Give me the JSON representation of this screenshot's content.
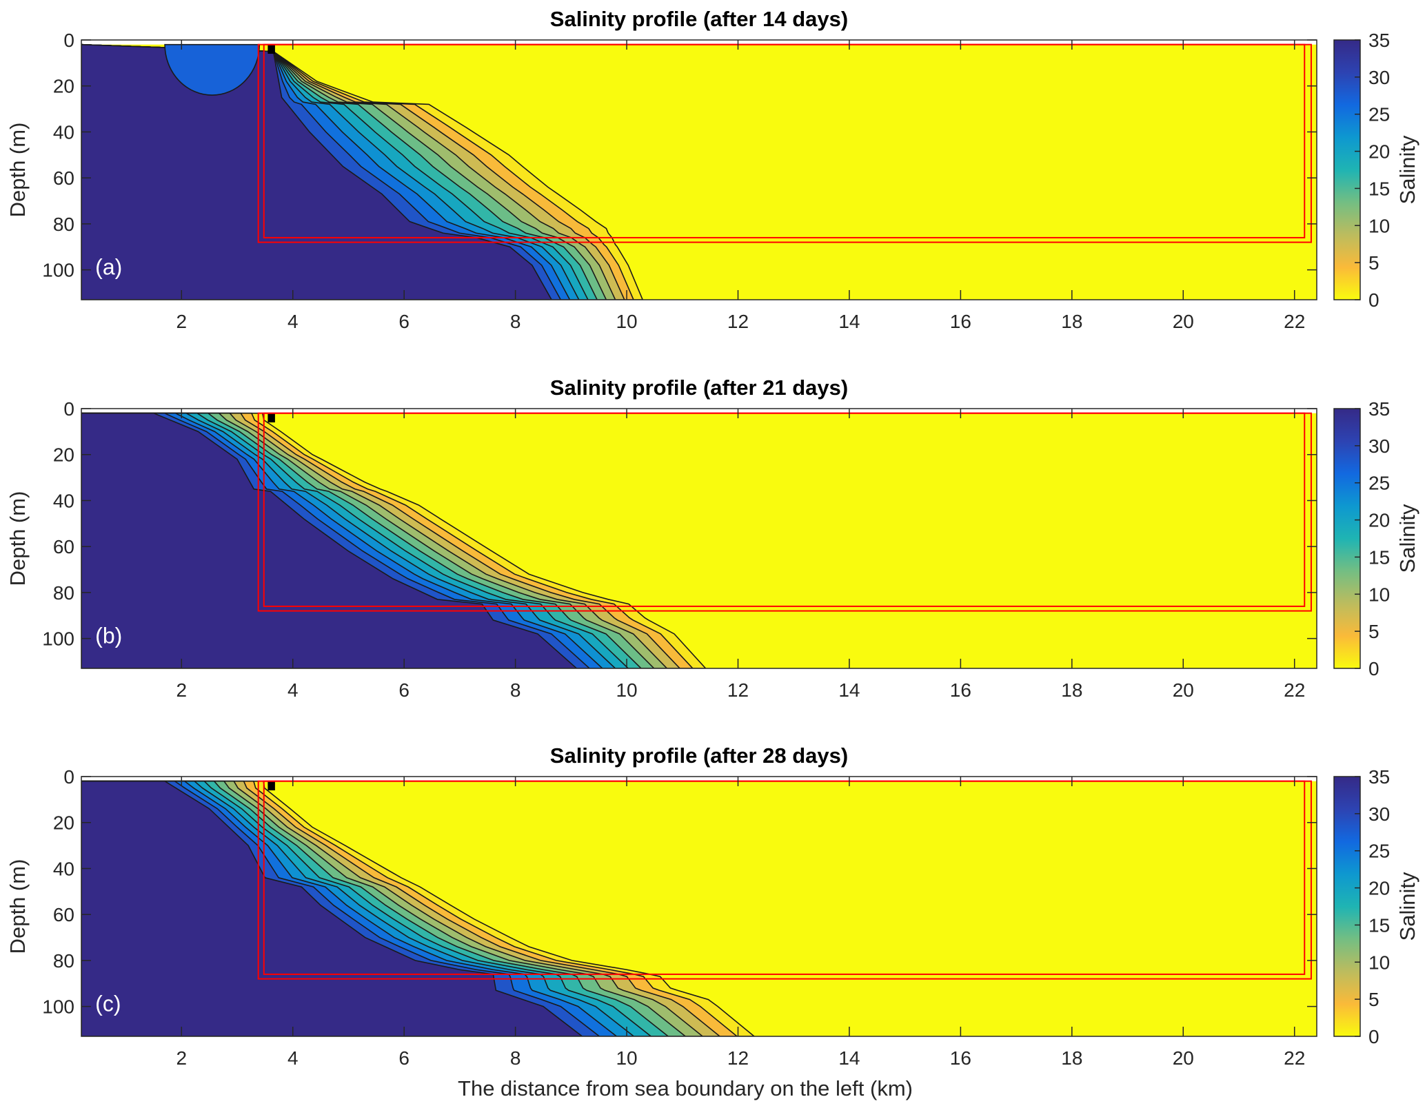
{
  "figure": {
    "xlabel": "The distance from sea boundary on the left (km)",
    "ylabel": "Depth (m)",
    "colorbar_label": "Salinity"
  },
  "colors": {
    "sea_water": "#352A87",
    "fresh_water": "#F9FB0E",
    "overlay_box": "#FF0000",
    "parula_stops": [
      "#F9FB0E",
      "#FABA39",
      "#BCBC5E",
      "#73BE83",
      "#1FB4B3",
      "#0E98D0",
      "#1269E0",
      "#2D43B2",
      "#352A87"
    ]
  },
  "chart_data": [
    {
      "type": "heatmap",
      "panel_label": "(a)",
      "title": "Salinity profile (after 14 days)",
      "xlabel": "",
      "ylabel": "Depth (m)",
      "xlim": [
        0.2,
        22.4
      ],
      "ylim": [
        0,
        113
      ],
      "xticks": [
        2,
        4,
        6,
        8,
        10,
        12,
        14,
        16,
        18,
        20,
        22
      ],
      "yticks": [
        0,
        20,
        40,
        60,
        80,
        100
      ],
      "colorbar": {
        "label": "Salinity",
        "range": [
          0,
          35
        ],
        "ticks": [
          0,
          5,
          10,
          15,
          20,
          25,
          30,
          35
        ]
      },
      "contour_levels": [
        3,
        6,
        9,
        12,
        15,
        18,
        21,
        24,
        27,
        30
      ],
      "surface_lens": {
        "x_start": 1.7,
        "x_end": 3.4,
        "bottom_depth": 24,
        "salinity": 27
      },
      "boundaries": {
        "fresh_edge": [
          [
            3.65,
            5
          ],
          [
            4.5,
            18
          ],
          [
            5.6,
            27
          ],
          [
            6.7,
            28
          ],
          [
            7.4,
            38
          ],
          [
            8.2,
            50
          ],
          [
            8.9,
            64
          ],
          [
            9.5,
            74
          ],
          [
            9.95,
            82
          ],
          [
            10.0,
            89
          ],
          [
            10.2,
            98
          ],
          [
            10.45,
            113
          ]
        ],
        "sea_edge": [
          [
            3.65,
            5
          ],
          [
            3.8,
            25
          ],
          [
            4.3,
            40
          ],
          [
            4.9,
            55
          ],
          [
            5.6,
            67
          ],
          [
            6.1,
            79
          ],
          [
            6.7,
            84
          ],
          [
            7.3,
            86
          ],
          [
            7.9,
            90
          ],
          [
            8.3,
            98
          ],
          [
            8.65,
            113
          ]
        ]
      },
      "overlay_boxes": [
        {
          "x": [
            3.38,
            22.3
          ],
          "depth": [
            2,
            88
          ]
        },
        {
          "x": [
            3.48,
            22.18
          ],
          "depth": [
            2,
            86
          ]
        }
      ]
    },
    {
      "type": "heatmap",
      "panel_label": "(b)",
      "title": "Salinity profile (after 21 days)",
      "xlabel": "",
      "ylabel": "Depth (m)",
      "xlim": [
        0.2,
        22.4
      ],
      "ylim": [
        0,
        113
      ],
      "xticks": [
        2,
        4,
        6,
        8,
        10,
        12,
        14,
        16,
        18,
        20,
        22
      ],
      "yticks": [
        0,
        20,
        40,
        60,
        80,
        100
      ],
      "colorbar": {
        "label": "Salinity",
        "range": [
          0,
          35
        ],
        "ticks": [
          0,
          5,
          10,
          15,
          20,
          25,
          30,
          35
        ]
      },
      "contour_levels": [
        3,
        6,
        9,
        12,
        15,
        18,
        21,
        24,
        27,
        30
      ],
      "surface_lens": null,
      "boundaries": {
        "fresh_edge": [
          [
            3.65,
            5
          ],
          [
            4.5,
            20
          ],
          [
            5.5,
            32
          ],
          [
            6.5,
            42
          ],
          [
            7.5,
            57
          ],
          [
            8.5,
            72
          ],
          [
            9.5,
            80
          ],
          [
            10.3,
            85
          ],
          [
            10.6,
            91
          ],
          [
            11.1,
            98
          ],
          [
            11.65,
            113
          ]
        ],
        "sea_edge": [
          [
            1.5,
            2
          ],
          [
            2.3,
            10
          ],
          [
            3.0,
            22
          ],
          [
            3.3,
            35
          ],
          [
            3.6,
            36
          ],
          [
            4.2,
            48
          ],
          [
            5.0,
            62
          ],
          [
            5.8,
            74
          ],
          [
            6.6,
            83
          ],
          [
            7.4,
            85
          ],
          [
            7.6,
            92
          ],
          [
            8.4,
            98
          ],
          [
            9.1,
            113
          ]
        ]
      },
      "overlay_boxes": [
        {
          "x": [
            3.38,
            22.3
          ],
          "depth": [
            2,
            88
          ]
        },
        {
          "x": [
            3.48,
            22.18
          ],
          "depth": [
            2,
            86
          ]
        }
      ]
    },
    {
      "type": "heatmap",
      "panel_label": "(c)",
      "title": "Salinity profile (after 28 days)",
      "xlabel": "The distance from sea boundary on the left (km)",
      "ylabel": "Depth (m)",
      "xlim": [
        0.2,
        22.4
      ],
      "ylim": [
        0,
        113
      ],
      "xticks": [
        2,
        4,
        6,
        8,
        10,
        12,
        14,
        16,
        18,
        20,
        22
      ],
      "yticks": [
        0,
        20,
        40,
        60,
        80,
        100
      ],
      "colorbar": {
        "label": "Salinity",
        "range": [
          0,
          35
        ],
        "ticks": [
          0,
          5,
          10,
          15,
          20,
          25,
          30,
          35
        ]
      },
      "contour_levels": [
        3,
        6,
        9,
        12,
        15,
        18,
        21,
        24,
        27,
        30
      ],
      "surface_lens": null,
      "boundaries": {
        "fresh_edge": [
          [
            3.65,
            5
          ],
          [
            4.5,
            22
          ],
          [
            5.5,
            35
          ],
          [
            6.5,
            48
          ],
          [
            7.5,
            62
          ],
          [
            8.5,
            74
          ],
          [
            9.3,
            80
          ],
          [
            10.3,
            84
          ],
          [
            10.9,
            87
          ],
          [
            11.1,
            92
          ],
          [
            11.8,
            97
          ],
          [
            12.6,
            113
          ]
        ],
        "sea_edge": [
          [
            1.7,
            2
          ],
          [
            2.5,
            14
          ],
          [
            3.2,
            30
          ],
          [
            3.5,
            44
          ],
          [
            3.9,
            42
          ],
          [
            4.5,
            56
          ],
          [
            5.3,
            70
          ],
          [
            6.2,
            80
          ],
          [
            7.0,
            84
          ],
          [
            7.6,
            86
          ],
          [
            7.65,
            93
          ],
          [
            8.5,
            100
          ],
          [
            9.2,
            113
          ]
        ]
      },
      "overlay_boxes": [
        {
          "x": [
            3.38,
            22.3
          ],
          "depth": [
            2,
            88
          ]
        },
        {
          "x": [
            3.48,
            22.18
          ],
          "depth": [
            2,
            86
          ]
        }
      ]
    }
  ]
}
